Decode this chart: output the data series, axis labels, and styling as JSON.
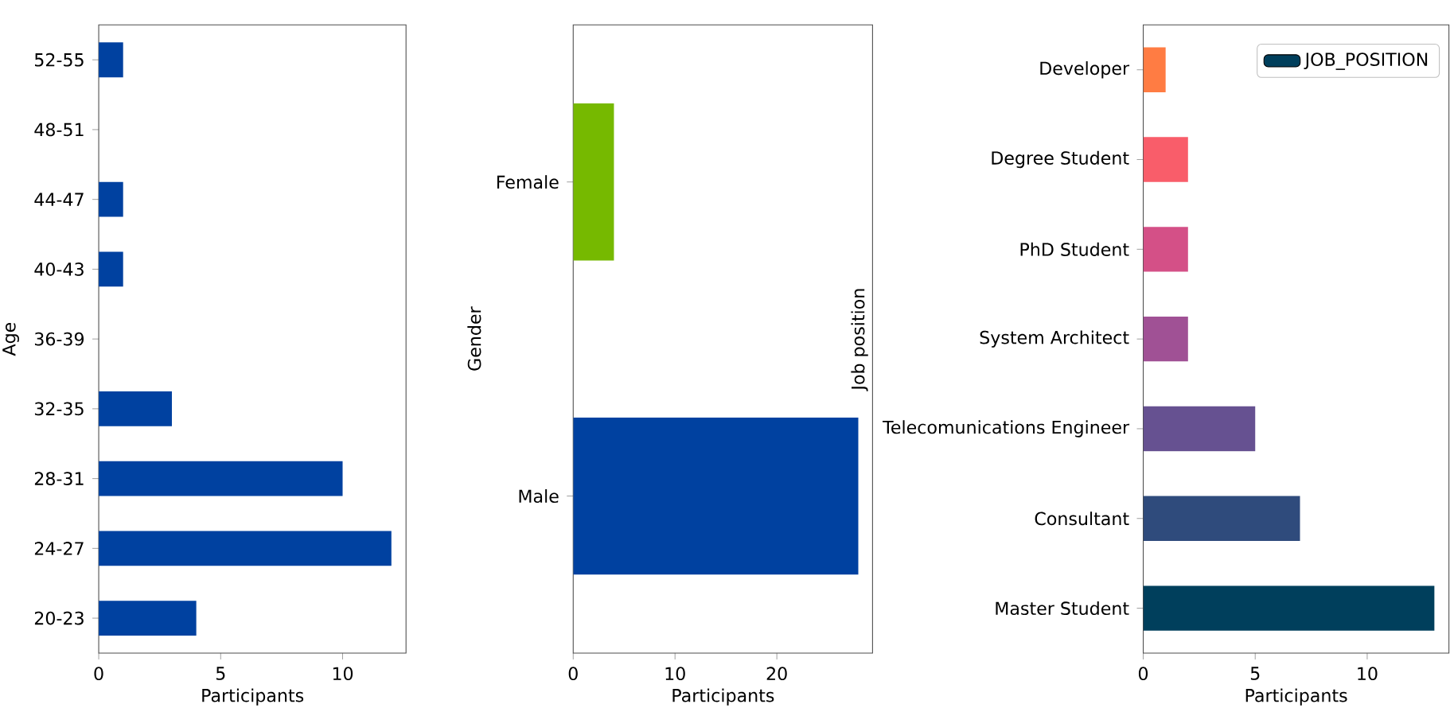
{
  "chart_data": [
    {
      "type": "bar",
      "orientation": "horizontal",
      "ylabel": "Age",
      "xlabel": "Participants",
      "categories": [
        "52-55",
        "48-51",
        "44-47",
        "40-43",
        "36-39",
        "32-35",
        "28-31",
        "24-27",
        "20-23"
      ],
      "values": [
        1,
        0,
        1,
        1,
        0,
        3,
        10,
        12,
        4
      ],
      "color": "#0041a0",
      "xlim": [
        0,
        12.6
      ],
      "xticks": [
        0,
        5,
        10
      ]
    },
    {
      "type": "bar",
      "orientation": "horizontal",
      "ylabel": "Gender",
      "xlabel": "Participants",
      "categories": [
        "Female",
        "Male"
      ],
      "values": [
        4,
        28
      ],
      "colors": [
        "#76b900",
        "#0041a0"
      ],
      "xlim": [
        0,
        29.4
      ],
      "xticks": [
        0,
        10,
        20
      ]
    },
    {
      "type": "bar",
      "orientation": "horizontal",
      "ylabel": "Job position",
      "xlabel": "Participants",
      "categories": [
        "Developer",
        "Degree Student",
        "PhD Student",
        "System Architect",
        "Telecomunications Engineer",
        "Consultant",
        "Master Student"
      ],
      "series": [
        {
          "name": "JOB_POSITION",
          "color": "#003f5c",
          "values": [
            1,
            2,
            2,
            2,
            5,
            7,
            13
          ],
          "colors": [
            "#ff7c43",
            "#f95d6a",
            "#d45087",
            "#a05195",
            "#665191",
            "#2f4b7c",
            "#003f5c"
          ]
        }
      ],
      "legend": "top right",
      "xlim": [
        0,
        13.65
      ],
      "xticks": [
        0,
        5,
        10
      ]
    }
  ]
}
